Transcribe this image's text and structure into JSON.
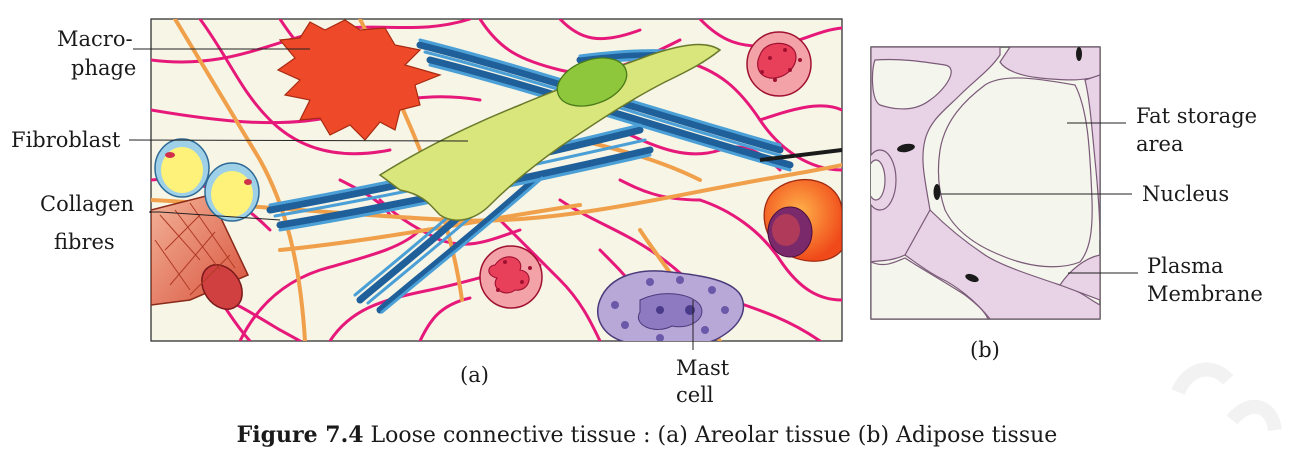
{
  "panel_a": {
    "label": "(a)",
    "labels": {
      "macrophage_1": "Macro-",
      "macrophage_2": "phage",
      "fibroblast": "Fibroblast",
      "collagen_1": "Collagen",
      "collagen_2": "fibres",
      "mast_1": "Mast",
      "mast_2": "cell"
    }
  },
  "panel_b": {
    "label": "(b)",
    "labels": {
      "fat_1": "Fat storage",
      "fat_2": "area",
      "nucleus": "Nucleus",
      "plasma_1": "Plasma",
      "plasma_2": "Membrane"
    }
  },
  "caption": {
    "figure": "Figure 7.4",
    "text": " Loose connective tissue : (a) Areolar tissue  (b) Adipose tissue"
  },
  "colors": {
    "background_a": "#f6f5e6",
    "background_b": "#f4f5ec",
    "elastic_fibre": "#e6197a",
    "collagen_orange": "#f0a04a",
    "collagen_blue": "#2f77b8",
    "fibroblast": "#d8e67c",
    "macrophage": "#ee4a2a",
    "mast_cell": "#b8a8d8",
    "adipose_membrane": "#e8d3e6"
  }
}
